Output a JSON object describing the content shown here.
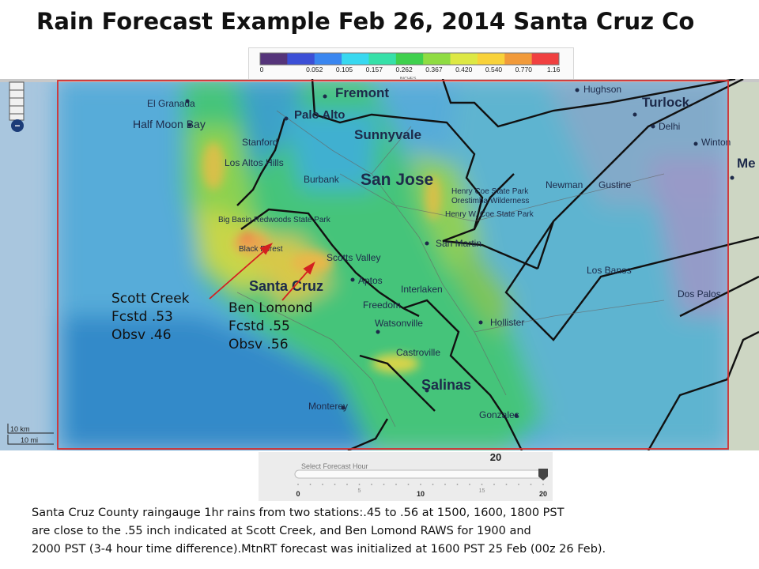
{
  "title": "Rain Forecast Example Feb 26, 2014 Santa Cruz Co",
  "legend": {
    "ticks": [
      "0",
      "0.052",
      "0.105",
      "0.157",
      "0.262",
      "0.367",
      "0.420",
      "0.540",
      "0.770",
      "1.16"
    ],
    "units": "INCHES",
    "colors": [
      "#55347a",
      "#3c4fd6",
      "#3a86f0",
      "#38d8f0",
      "#36e0a8",
      "#3fd04d",
      "#8fdc42",
      "#dde844",
      "#f8d23a",
      "#f19a3a",
      "#f04040"
    ]
  },
  "map": {
    "places": [
      {
        "name": "Fremont"
      },
      {
        "name": "Hughson"
      },
      {
        "name": "Turlock"
      },
      {
        "name": "El Granada"
      },
      {
        "name": "Palo Alto"
      },
      {
        "name": "Delhi"
      },
      {
        "name": "Half Moon Bay"
      },
      {
        "name": "Sunnyvale"
      },
      {
        "name": "Winton"
      },
      {
        "name": "Stanford"
      },
      {
        "name": "Me"
      },
      {
        "name": "Los Altos Hills"
      },
      {
        "name": "San Jose"
      },
      {
        "name": "Burbank"
      },
      {
        "name": "Henry Coe State Park"
      },
      {
        "name": "Orestimba Wilderness"
      },
      {
        "name": "Newman"
      },
      {
        "name": "Gustine"
      },
      {
        "name": "Henry W. Coe State Park"
      },
      {
        "name": "Big Basin Redwoods State Park"
      },
      {
        "name": "San Martin"
      },
      {
        "name": "Scotts Valley"
      },
      {
        "name": "Black Forest"
      },
      {
        "name": "Santa Cruz"
      },
      {
        "name": "Aptos"
      },
      {
        "name": "Interlaken"
      },
      {
        "name": "Los Banos"
      },
      {
        "name": "Freedom"
      },
      {
        "name": "Dos Palos"
      },
      {
        "name": "Watsonville"
      },
      {
        "name": "Hollister"
      },
      {
        "name": "Castroville"
      },
      {
        "name": "Monterey"
      },
      {
        "name": "Salinas"
      },
      {
        "name": "Gonzales"
      }
    ],
    "scale": {
      "km": "10 km",
      "mi": "10 mi"
    },
    "zoom_out_symbol": "−"
  },
  "annotations": {
    "scott_creek": {
      "name": "Scott Creek",
      "forecast": "Fcstd .53",
      "observed": "Obsv .46"
    },
    "ben_lomond": {
      "name": "Ben Lomond",
      "forecast": "Fcstd .55",
      "observed": "Obsv .56"
    }
  },
  "slider": {
    "label": "Select Forecast Hour",
    "current": "20",
    "value": 20,
    "min": 0,
    "max": 20,
    "ticks": [
      "0",
      "5",
      "10",
      "15",
      "20"
    ]
  },
  "caption": {
    "line1": "Santa Cruz County raingauge 1hr rains from two stations:.45 to .56  at 1500, 1600, 1800 PST",
    "line2": "are close to the .55 inch indicated at Scott Creek,  and  Ben Lomond RAWS for 1900 and",
    "line3": "2000 PST (3-4 hour time difference).MtnRT  forecast was initialized at 1600 PST 25 Feb (00z 26 Feb)."
  }
}
